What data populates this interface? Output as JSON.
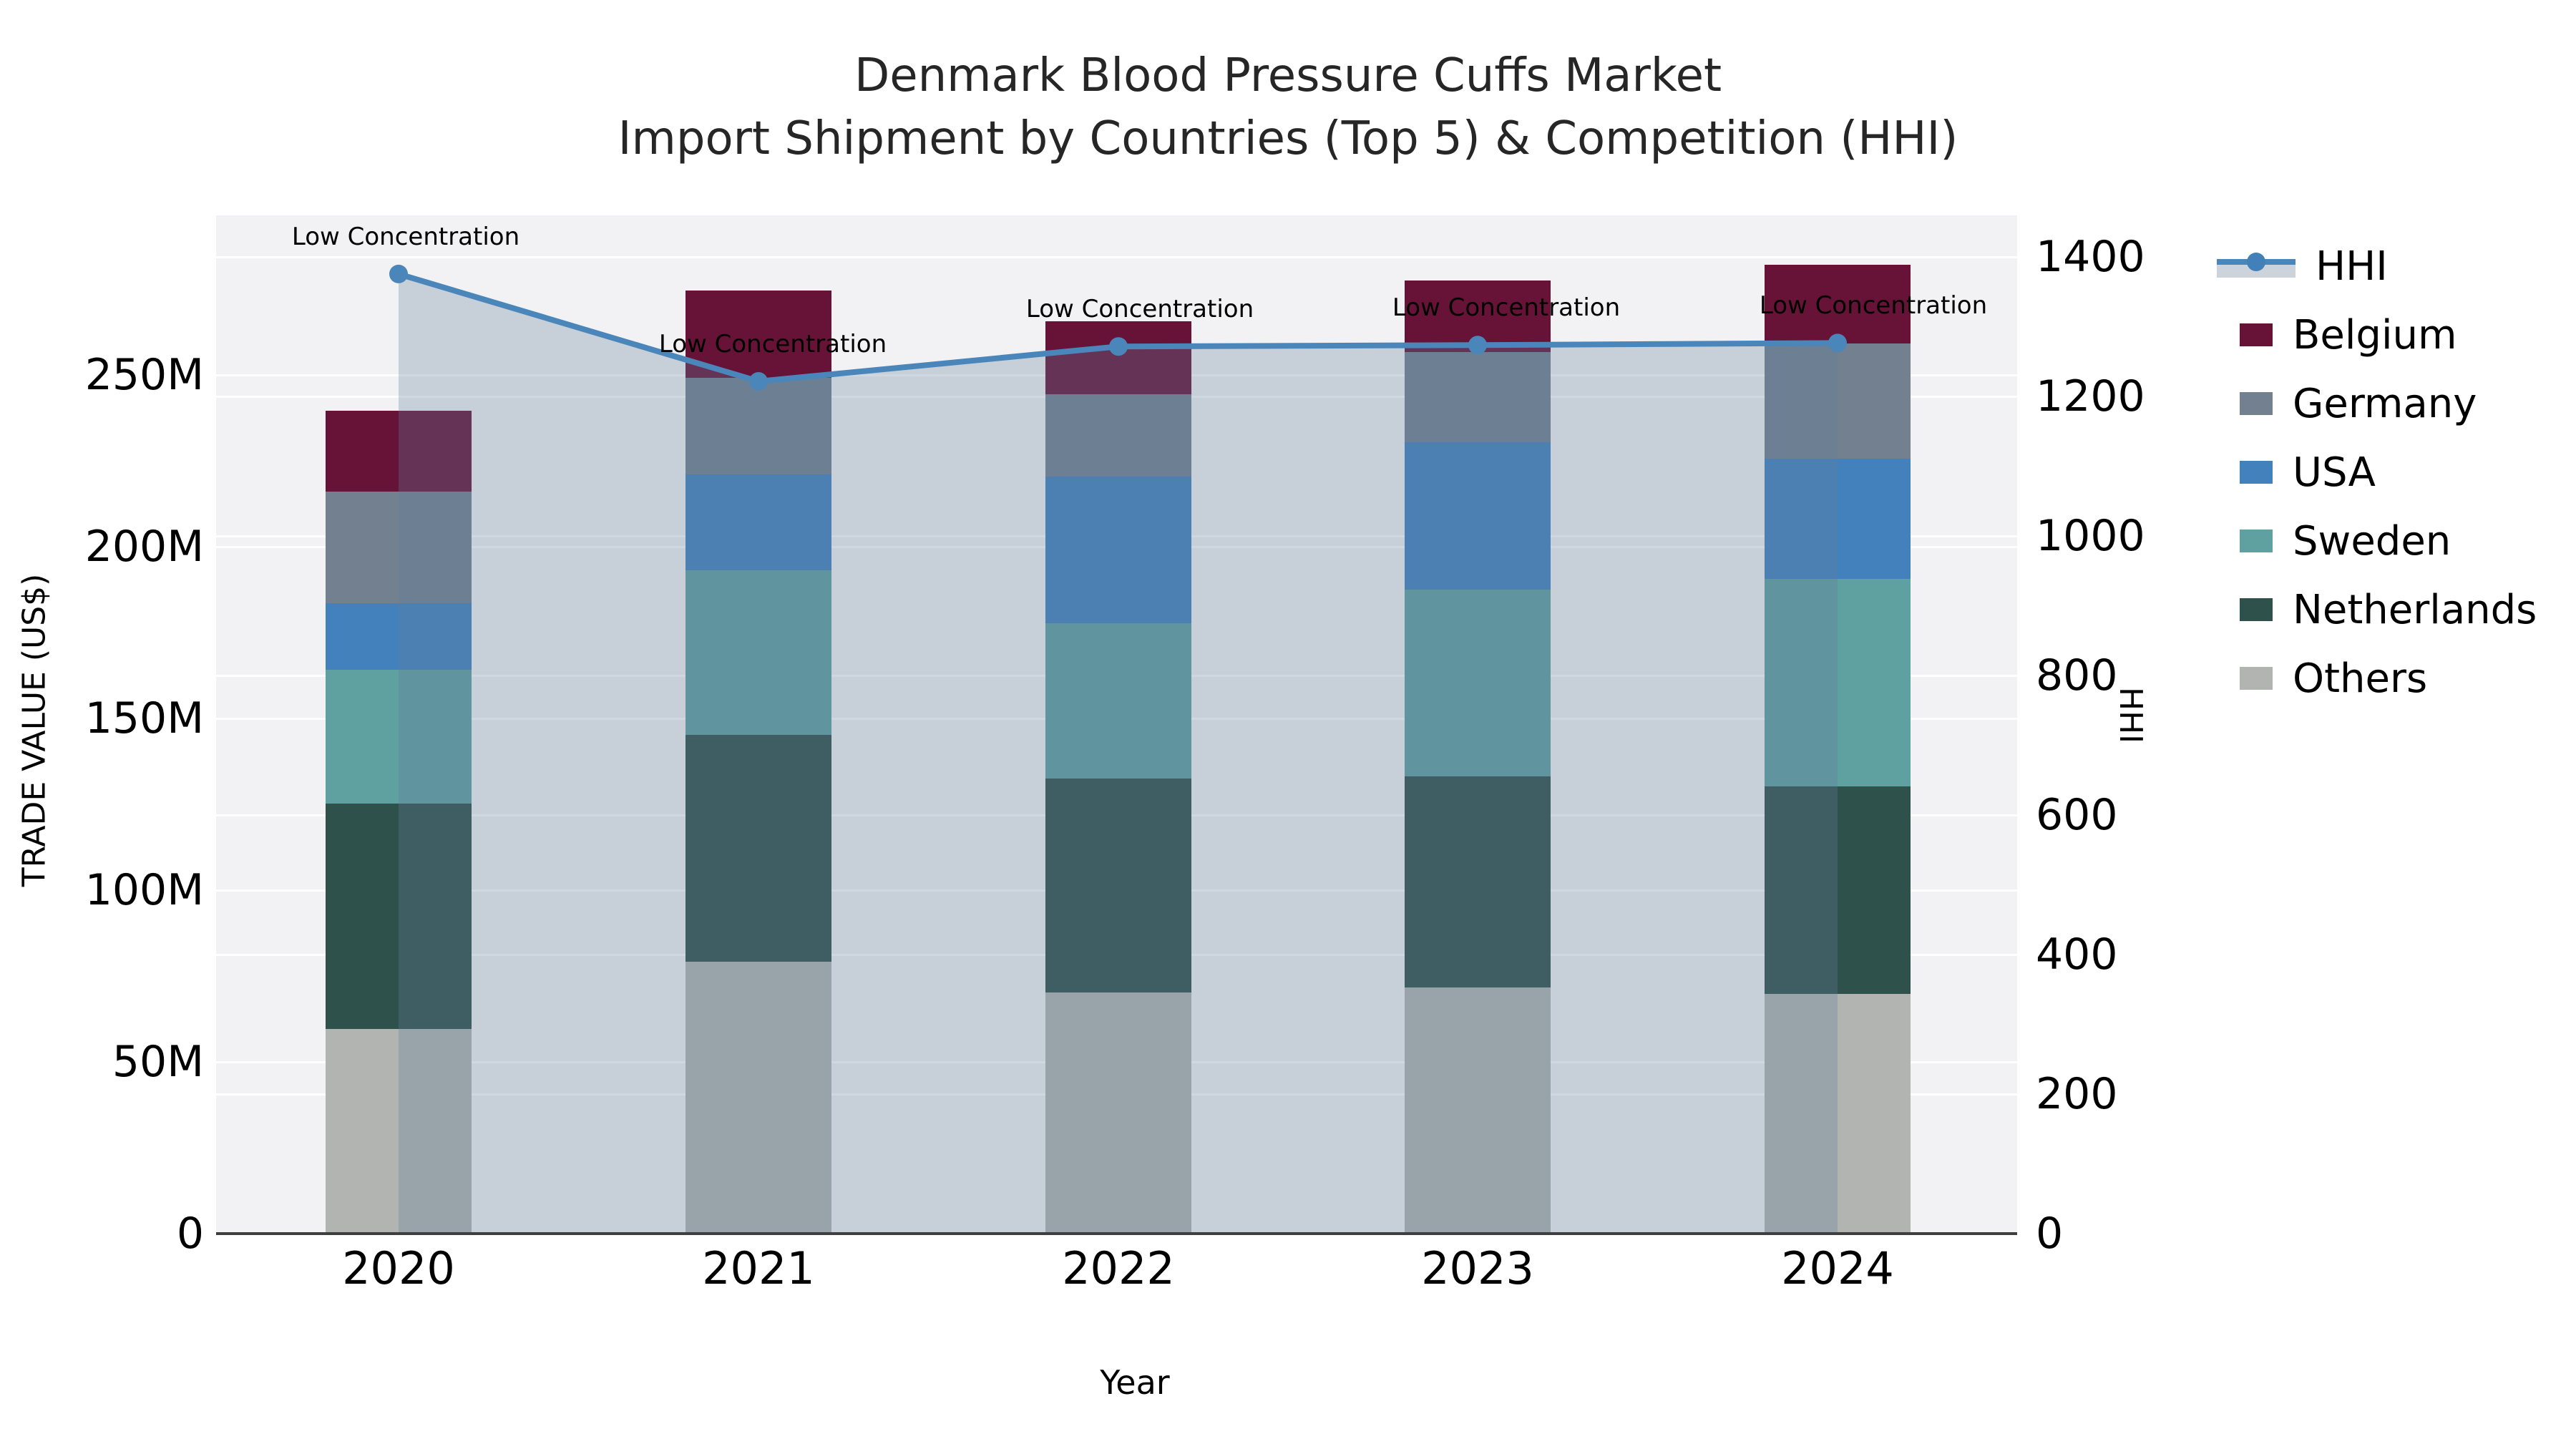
{
  "title": {
    "line1": "Denmark Blood Pressure Cuffs Market",
    "line2": "Import Shipment by Countries (Top 5) & Competition (HHI)"
  },
  "axes": {
    "left_label": "TRADE VALUE (US$)",
    "right_label": "HHI",
    "x_label": "Year",
    "left_ticks": [
      "0",
      "50M",
      "100M",
      "150M",
      "200M",
      "250M"
    ],
    "left_tick_values": [
      0,
      50,
      100,
      150,
      200,
      250
    ],
    "right_ticks": [
      "0",
      "200",
      "400",
      "600",
      "800",
      "1000",
      "1200",
      "1400"
    ],
    "right_tick_values": [
      0,
      200,
      400,
      600,
      800,
      1000,
      1200,
      1400
    ],
    "x_ticks": [
      "2020",
      "2021",
      "2022",
      "2023",
      "2024"
    ]
  },
  "legend": {
    "entries": [
      {
        "label": "HHI",
        "type": "line",
        "color": "#4b86ba"
      },
      {
        "label": "Belgium",
        "type": "patch",
        "color": "#661337"
      },
      {
        "label": "Germany",
        "type": "patch",
        "color": "#72808f"
      },
      {
        "label": "USA",
        "type": "patch",
        "color": "#4381bc"
      },
      {
        "label": "Sweden",
        "type": "patch",
        "color": "#5fa0a1"
      },
      {
        "label": "Netherlands",
        "type": "patch",
        "color": "#2f514b"
      },
      {
        "label": "Others",
        "type": "patch",
        "color": "#b1b4b1"
      }
    ]
  },
  "annotation_label": "Low Concentration",
  "chart_data": {
    "type": "combo_stacked_bar_line",
    "title": "Denmark Blood Pressure Cuffs Market — Import Shipment by Countries (Top 5) & Competition (HHI)",
    "categories": [
      "2020",
      "2021",
      "2022",
      "2023",
      "2024"
    ],
    "unit_bars": "Trade value, million US$",
    "stack_order_bottom_to_top": [
      "Others",
      "Netherlands",
      "Sweden",
      "USA",
      "Germany",
      "Belgium"
    ],
    "series": [
      {
        "name": "Belgium",
        "color": "#661337",
        "values": [
          23.6,
          25.4,
          21.2,
          20.8,
          23.1
        ]
      },
      {
        "name": "Germany",
        "color": "#72808f",
        "values": [
          32.5,
          28.2,
          24.0,
          26.3,
          33.5
        ]
      },
      {
        "name": "USA",
        "color": "#4381bc",
        "values": [
          19.3,
          27.9,
          42.7,
          42.9,
          35.0
        ]
      },
      {
        "name": "Sweden",
        "color": "#5fa0a1",
        "values": [
          39.0,
          47.9,
          45.2,
          54.4,
          60.4
        ]
      },
      {
        "name": "Netherlands",
        "color": "#2f514b",
        "values": [
          65.6,
          66.0,
          62.3,
          61.5,
          60.4
        ]
      },
      {
        "name": "Others",
        "color": "#b1b4b1",
        "values": [
          59.6,
          79.2,
          70.2,
          71.7,
          69.8
        ]
      }
    ],
    "bar_totals": [
      239.6,
      274.6,
      265.6,
      277.6,
      282.2
    ],
    "line_series": {
      "name": "HHI",
      "color": "#4b86ba",
      "fill_color": "rgba(100,125,155,0.30)",
      "values": [
        1376,
        1222,
        1272,
        1274,
        1277
      ],
      "annotations": [
        "Low Concentration",
        "Low Concentration",
        "Low Concentration",
        "Low Concentration",
        "Low Concentration"
      ]
    },
    "xlabel": "Year",
    "ylabel_left": "TRADE VALUE (US$)",
    "ylabel_right": "HHI",
    "ylim_left": [
      0,
      296.5
    ],
    "ylim_right": [
      0,
      1460
    ],
    "grid": true,
    "legend_position": "right"
  }
}
